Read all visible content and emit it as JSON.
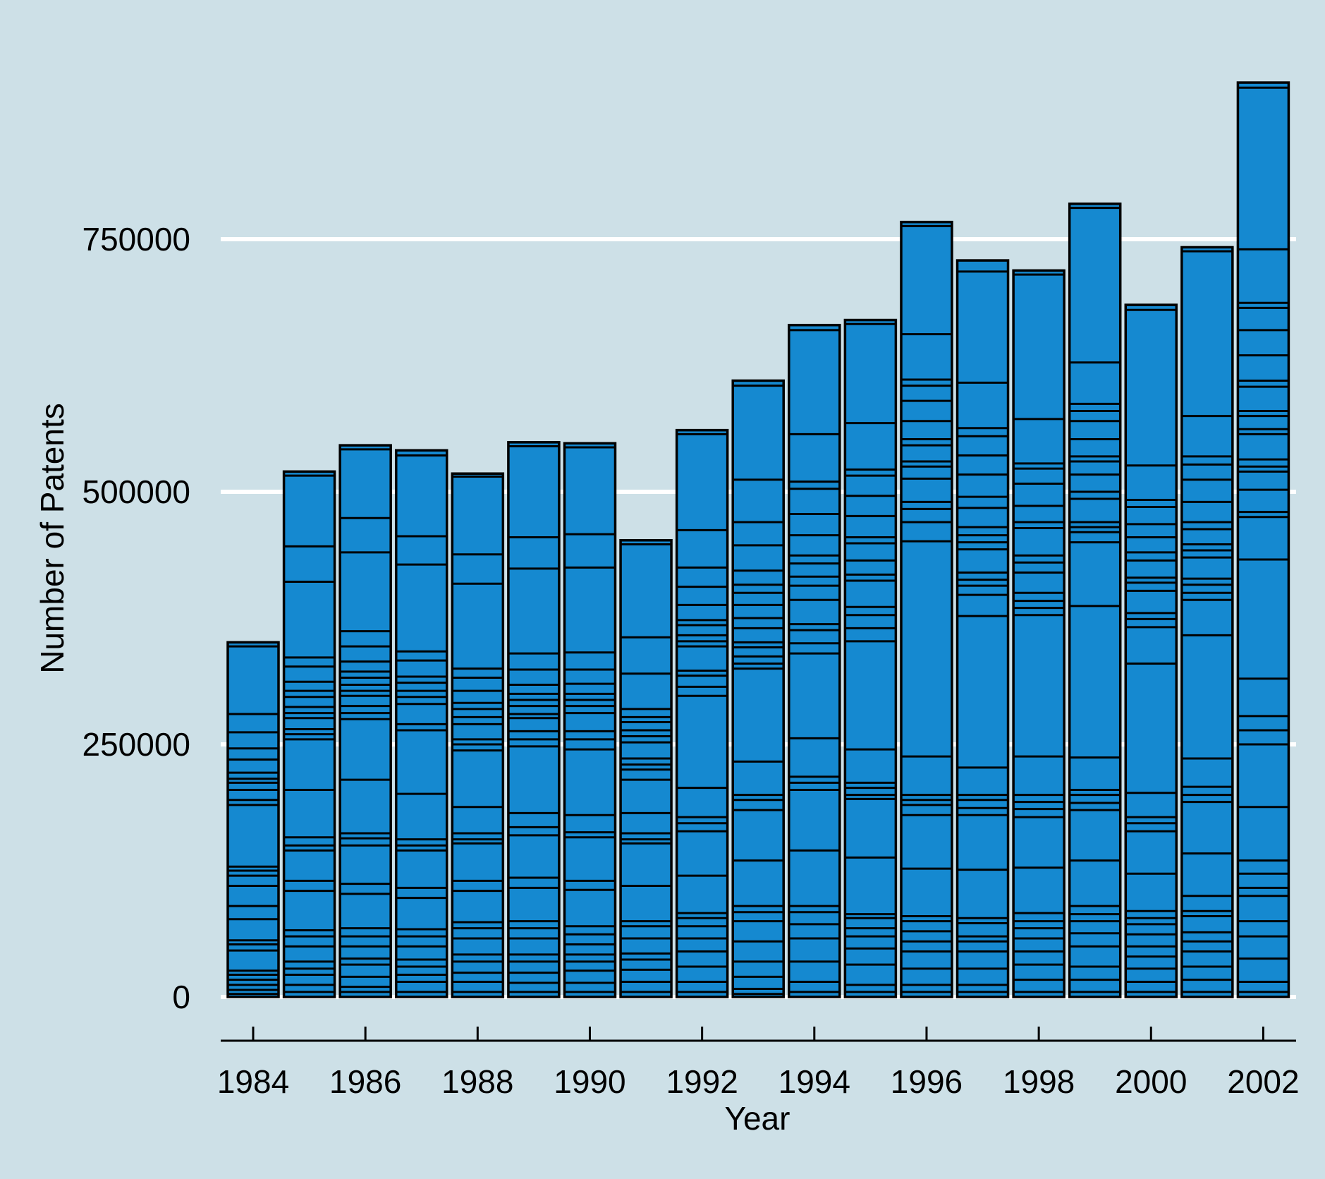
{
  "chart_data": {
    "type": "bar",
    "stacked": true,
    "title": "",
    "xlabel": "Year",
    "ylabel": "Number of Patents",
    "ylim": [
      0,
      1000000
    ],
    "yticks": [
      0,
      250000,
      500000,
      750000
    ],
    "ytick_labels": [
      "0",
      "250000",
      "500000",
      "750000"
    ],
    "xtick_labels": [
      "1984",
      "1986",
      "1988",
      "1990",
      "1992",
      "1994",
      "1996",
      "1998",
      "2000",
      "2002"
    ],
    "grid": "horizontal",
    "bar_color": "#1589d0",
    "edge_color": "#000000",
    "categories": [
      "1984",
      "1985",
      "1986",
      "1987",
      "1988",
      "1989",
      "1990",
      "1991",
      "1992",
      "1993",
      "1994",
      "1995",
      "1996",
      "1997",
      "1998",
      "1999",
      "2000",
      "2001",
      "2002"
    ],
    "totals": [
      351000,
      520000,
      546000,
      541000,
      518000,
      549000,
      548000,
      452000,
      561000,
      610000,
      665000,
      670000,
      767000,
      729000,
      719000,
      785000,
      685000,
      742000,
      905000
    ],
    "segments": [
      [
        351000,
        347000,
        280000,
        262000,
        246000,
        235000,
        222000,
        216000,
        212000,
        205000,
        195000,
        190000,
        129000,
        125000,
        120000,
        110000,
        90000,
        77000,
        56000,
        52000,
        46000,
        26000,
        22000,
        17000,
        12000,
        7000,
        3000
      ],
      [
        520000,
        516000,
        446000,
        411000,
        336000,
        327000,
        312000,
        303000,
        297000,
        287000,
        281000,
        276000,
        265000,
        260000,
        255000,
        205000,
        158000,
        150000,
        145000,
        115000,
        105000,
        66000,
        60000,
        50000,
        35000,
        28000,
        22000,
        12000,
        5000
      ],
      [
        546000,
        542000,
        474000,
        440000,
        362000,
        347000,
        332000,
        322000,
        316000,
        309000,
        303000,
        298000,
        288000,
        281000,
        275000,
        215000,
        162000,
        157000,
        150000,
        112000,
        102000,
        68000,
        60000,
        50000,
        38000,
        32000,
        20000,
        10000,
        5000
      ],
      [
        541000,
        536000,
        456000,
        428000,
        342000,
        333000,
        317000,
        311000,
        303000,
        297000,
        290000,
        270000,
        264000,
        201000,
        156000,
        150000,
        145000,
        108000,
        98000,
        67000,
        60000,
        50000,
        37000,
        30000,
        22000,
        15000,
        5000
      ],
      [
        518000,
        515000,
        438000,
        409000,
        325000,
        316000,
        303000,
        291000,
        285000,
        277000,
        270000,
        255000,
        250000,
        244000,
        188000,
        162000,
        156000,
        152000,
        115000,
        105000,
        74000,
        68000,
        58000,
        42000,
        35000,
        24000,
        15000,
        5000
      ],
      [
        549000,
        545000,
        455000,
        424000,
        340000,
        324000,
        309000,
        300000,
        294000,
        288000,
        280000,
        276000,
        263000,
        255000,
        248000,
        182000,
        168000,
        160000,
        118000,
        108000,
        75000,
        68000,
        58000,
        42000,
        35000,
        24000,
        14000,
        5000
      ],
      [
        548000,
        544000,
        458000,
        425000,
        341000,
        324000,
        310000,
        300000,
        294000,
        288000,
        281000,
        263000,
        255000,
        245000,
        180000,
        163000,
        158000,
        115000,
        106000,
        70000,
        62000,
        52000,
        42000,
        35000,
        26000,
        14000,
        5000
      ],
      [
        452000,
        448000,
        356000,
        320000,
        285000,
        277000,
        272000,
        264000,
        258000,
        252000,
        236000,
        230000,
        225000,
        215000,
        182000,
        162000,
        156000,
        152000,
        110000,
        75000,
        70000,
        58000,
        43000,
        37000,
        27000,
        15000,
        5000
      ],
      [
        561000,
        557000,
        462000,
        425000,
        406000,
        388000,
        373000,
        368000,
        358000,
        352000,
        347000,
        323000,
        318000,
        307000,
        298000,
        207000,
        178000,
        172000,
        164000,
        120000,
        83000,
        78000,
        70000,
        58000,
        45000,
        30000,
        15000,
        5000
      ],
      [
        610000,
        605000,
        512000,
        470000,
        447000,
        422000,
        408000,
        400000,
        388000,
        375000,
        365000,
        351000,
        346000,
        337000,
        330000,
        325000,
        233000,
        200000,
        195000,
        185000,
        135000,
        90000,
        84000,
        75000,
        55000,
        35000,
        20000,
        8000,
        3000
      ],
      [
        665000,
        660000,
        557000,
        510000,
        503000,
        478000,
        457000,
        437000,
        429000,
        416000,
        407000,
        393000,
        369000,
        363000,
        350000,
        340000,
        256000,
        218000,
        212000,
        205000,
        145000,
        90000,
        84000,
        72000,
        58000,
        35000,
        15000,
        5000
      ],
      [
        670000,
        666000,
        568000,
        522000,
        516000,
        496000,
        476000,
        455000,
        449000,
        432000,
        418000,
        412000,
        386000,
        378000,
        365000,
        352000,
        245000,
        212000,
        207000,
        200000,
        196000,
        138000,
        82000,
        78000,
        68000,
        60000,
        48000,
        32000,
        12000,
        5000
      ],
      [
        767000,
        763000,
        656000,
        611000,
        605000,
        590000,
        570000,
        552000,
        546000,
        530000,
        525000,
        513000,
        490000,
        483000,
        470000,
        451000,
        238000,
        200000,
        195000,
        190000,
        180000,
        127000,
        80000,
        75000,
        65000,
        55000,
        45000,
        28000,
        12000,
        5000
      ],
      [
        729000,
        718000,
        608000,
        563000,
        555000,
        536000,
        517000,
        495000,
        484000,
        465000,
        457000,
        450000,
        443000,
        420000,
        413000,
        407000,
        398000,
        377000,
        227000,
        200000,
        195000,
        187000,
        180000,
        126000,
        78000,
        73000,
        60000,
        55000,
        45000,
        28000,
        12000,
        5000
      ],
      [
        719000,
        715000,
        572000,
        528000,
        523000,
        508000,
        486000,
        470000,
        464000,
        437000,
        430000,
        420000,
        400000,
        392000,
        385000,
        378000,
        238000,
        200000,
        193000,
        186000,
        178000,
        128000,
        83000,
        75000,
        68000,
        58000,
        45000,
        32000,
        17000,
        5000
      ],
      [
        785000,
        781000,
        628000,
        587000,
        580000,
        570000,
        552000,
        535000,
        530000,
        517000,
        500000,
        493000,
        470000,
        465000,
        460000,
        450000,
        387000,
        237000,
        205000,
        200000,
        192000,
        185000,
        135000,
        90000,
        82000,
        75000,
        63000,
        50000,
        30000,
        17000,
        5000
      ],
      [
        685000,
        680000,
        526000,
        492000,
        485000,
        468000,
        455000,
        440000,
        432000,
        415000,
        410000,
        402000,
        380000,
        374000,
        366000,
        330000,
        202000,
        178000,
        172000,
        164000,
        122000,
        85000,
        78000,
        72000,
        62000,
        50000,
        40000,
        28000,
        15000,
        5000
      ],
      [
        742000,
        738000,
        575000,
        535000,
        527000,
        512000,
        490000,
        470000,
        463000,
        448000,
        442000,
        435000,
        414000,
        408000,
        400000,
        393000,
        358000,
        236000,
        208000,
        200000,
        193000,
        142000,
        100000,
        85000,
        80000,
        64000,
        55000,
        45000,
        30000,
        17000,
        5000
      ],
      [
        905000,
        900000,
        740000,
        687000,
        682000,
        660000,
        635000,
        610000,
        604000,
        580000,
        575000,
        562000,
        557000,
        532000,
        525000,
        520000,
        502000,
        480000,
        475000,
        433000,
        315000,
        278000,
        264000,
        250000,
        188000,
        135000,
        122000,
        108000,
        100000,
        75000,
        60000,
        38000,
        15000,
        5000
      ]
    ]
  }
}
